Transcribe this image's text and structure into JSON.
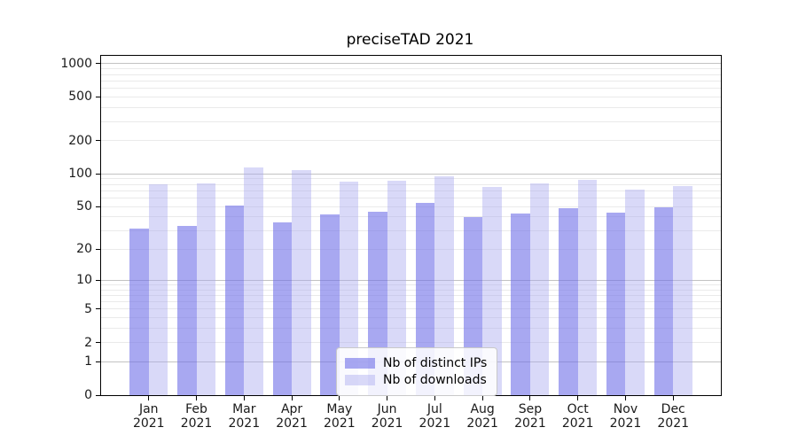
{
  "chart_data": {
    "type": "bar",
    "title": "preciseTAD 2021",
    "x_months": [
      "Jan",
      "Feb",
      "Mar",
      "Apr",
      "May",
      "Jun",
      "Jul",
      "Aug",
      "Sep",
      "Oct",
      "Nov",
      "Dec"
    ],
    "x_year": "2021",
    "series": [
      {
        "name": "Nb of distinct IPs",
        "color": "rgba(110,110,232,0.6)",
        "values": [
          31,
          33,
          51,
          36,
          42,
          45,
          54,
          40,
          43,
          48,
          44,
          49
        ]
      },
      {
        "name": "Nb of downloads",
        "color": "rgba(170,170,240,0.45)",
        "values": [
          80,
          82,
          114,
          109,
          85,
          86,
          95,
          76,
          82,
          88,
          72,
          77
        ]
      }
    ],
    "yscale": "log1p",
    "ylim": [
      0,
      1180
    ],
    "yticks": [
      0,
      1,
      2,
      5,
      10,
      20,
      50,
      100,
      200,
      500,
      1000
    ],
    "major_gridlines": [
      1,
      10,
      100,
      1000
    ],
    "minor_gridlines": [
      2,
      3,
      4,
      5,
      6,
      7,
      8,
      9,
      20,
      30,
      40,
      50,
      60,
      70,
      80,
      90,
      200,
      300,
      400,
      500,
      600,
      700,
      800,
      900
    ],
    "grid": true,
    "legend_position": "lower center",
    "xlabel": "",
    "ylabel": ""
  },
  "colors": {
    "major_grid": "#c2c2c2",
    "minor_grid": "#eaeaea",
    "axis": "#000000",
    "text": "#1a1a1a"
  }
}
